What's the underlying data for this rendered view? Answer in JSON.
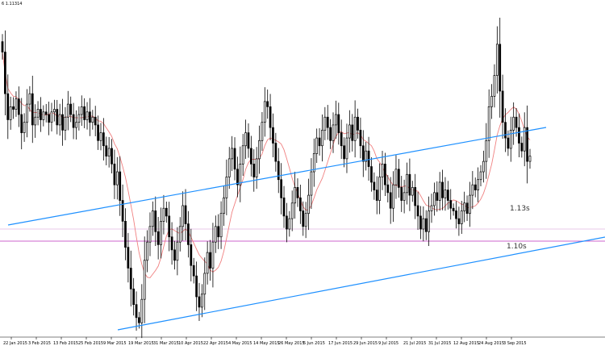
{
  "header": {
    "symbol_text": "6 1.11314"
  },
  "labels": {
    "upper_level": "1.13s",
    "lower_level": "1.10s"
  },
  "colors": {
    "candle_up": "#ffffff",
    "candle_down": "#000000",
    "candle_outline": "#000000",
    "channel": "#1e90ff",
    "ma_line": "#f08080",
    "hline": "#cc66cc",
    "hline_light": "#e8c8e8"
  },
  "chart_data": {
    "type": "candlestick",
    "x_ticks": [
      "22 Jan 2015",
      "3 Feb 2015",
      "13 Feb 2015",
      "25 Feb 2015",
      "9 Mar 2015",
      "19 Mar 2015",
      "31 Mar 2015",
      "10 Apr 2015",
      "22 Apr 2015",
      "4 May 2015",
      "14 May 2015",
      "26 May 2015",
      "5 Jun 2015",
      "17 Jun 2015",
      "29 Jun 2015",
      "9 Jul 2015",
      "21 Jul 2015",
      "31 Jul 2015",
      "12 Aug 2015",
      "24 Aug 2015",
      "3 Sep 2015"
    ],
    "ylim": [
      1.0455,
      1.1719
    ],
    "annotations": [
      "1.13s",
      "1.10s"
    ],
    "closes": [
      1.155,
      1.139,
      1.129,
      1.134,
      1.133,
      1.137,
      1.131,
      1.124,
      1.128,
      1.135,
      1.139,
      1.127,
      1.13,
      1.133,
      1.129,
      1.132,
      1.131,
      1.128,
      1.132,
      1.133,
      1.127,
      1.131,
      1.125,
      1.13,
      1.135,
      1.131,
      1.126,
      1.128,
      1.131,
      1.134,
      1.129,
      1.132,
      1.128,
      1.13,
      1.127,
      1.121,
      1.124,
      1.119,
      1.115,
      1.118,
      1.112,
      1.104,
      1.109,
      1.098,
      1.09,
      1.08,
      1.072,
      1.064,
      1.058,
      1.053,
      1.051,
      1.06,
      1.075,
      1.082,
      1.088,
      1.094,
      1.086,
      1.081,
      1.09,
      1.095,
      1.092,
      1.084,
      1.079,
      1.075,
      1.082,
      1.088,
      1.096,
      1.089,
      1.081,
      1.073,
      1.069,
      1.061,
      1.057,
      1.062,
      1.07,
      1.078,
      1.072,
      1.082,
      1.088,
      1.084,
      1.093,
      1.099,
      1.107,
      1.114,
      1.118,
      1.11,
      1.104,
      1.112,
      1.119,
      1.124,
      1.118,
      1.112,
      1.107,
      1.114,
      1.121,
      1.128,
      1.136,
      1.134,
      1.126,
      1.12,
      1.113,
      1.106,
      1.099,
      1.092,
      1.087,
      1.091,
      1.097,
      1.103,
      1.099,
      1.094,
      1.088,
      1.093,
      1.1,
      1.109,
      1.116,
      1.122,
      1.119,
      1.125,
      1.13,
      1.126,
      1.121,
      1.127,
      1.131,
      1.124,
      1.119,
      1.114,
      1.122,
      1.127,
      1.121,
      1.13,
      1.125,
      1.119,
      1.113,
      1.117,
      1.111,
      1.105,
      1.102,
      1.098,
      1.107,
      1.112,
      1.104,
      1.101,
      1.095,
      1.104,
      1.11,
      1.103,
      1.098,
      1.101,
      1.108,
      1.1,
      1.103,
      1.096,
      1.092,
      1.087,
      1.091,
      1.086,
      1.094,
      1.096,
      1.101,
      1.098,
      1.105,
      1.099,
      1.102,
      1.098,
      1.095,
      1.094,
      1.091,
      1.089,
      1.094,
      1.097,
      1.093,
      1.1,
      1.104,
      1.102,
      1.106,
      1.109,
      1.113,
      1.121,
      1.134,
      1.138,
      1.146,
      1.158,
      1.14,
      1.128,
      1.122,
      1.118,
      1.125,
      1.13,
      1.126,
      1.12,
      1.117,
      1.126,
      1.113,
      1.115
    ]
  }
}
